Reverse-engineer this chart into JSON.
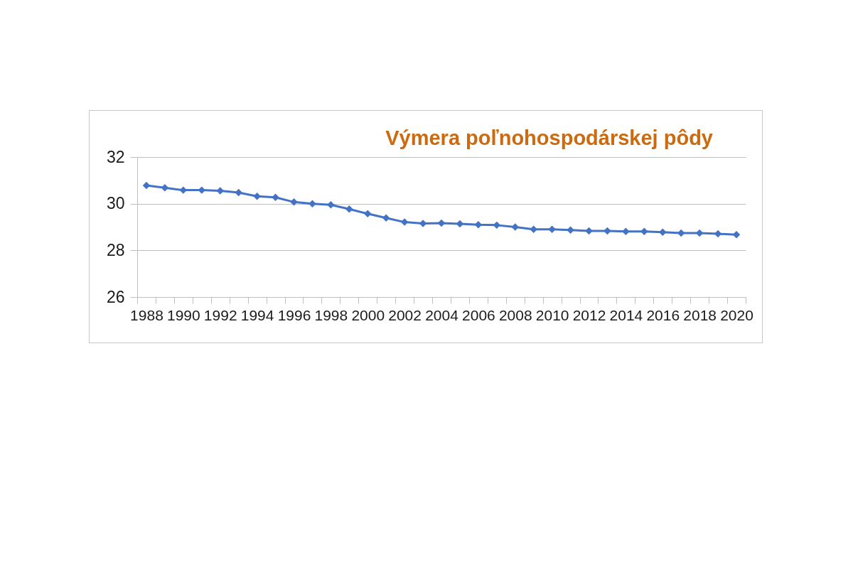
{
  "chart_data": {
    "type": "line",
    "title": "Výmera poľnohospodárskej pôdy",
    "categories": [
      "1988",
      null,
      "1990",
      null,
      "1992",
      null,
      "1994",
      null,
      "1996",
      null,
      "1998",
      null,
      "2000",
      null,
      "2002",
      null,
      "2004",
      null,
      "2006",
      null,
      "2008",
      null,
      "2010",
      null,
      "2012",
      null,
      "2014",
      null,
      "2016",
      null,
      "2018",
      null,
      "2020"
    ],
    "values": [
      30.78,
      30.68,
      30.58,
      30.58,
      30.55,
      30.48,
      30.32,
      30.27,
      30.07,
      30.0,
      29.95,
      29.77,
      29.57,
      29.39,
      29.21,
      29.15,
      29.17,
      29.14,
      29.1,
      29.08,
      29.0,
      28.9,
      28.9,
      28.87,
      28.83,
      28.83,
      28.81,
      28.81,
      28.78,
      28.74,
      28.74,
      28.71,
      28.67
    ],
    "color": "#4472c4",
    "ylim": [
      26,
      32
    ],
    "yticks": [
      26,
      28,
      30,
      32
    ],
    "grid": "y",
    "marker": "diamond",
    "line_style": "solid"
  }
}
